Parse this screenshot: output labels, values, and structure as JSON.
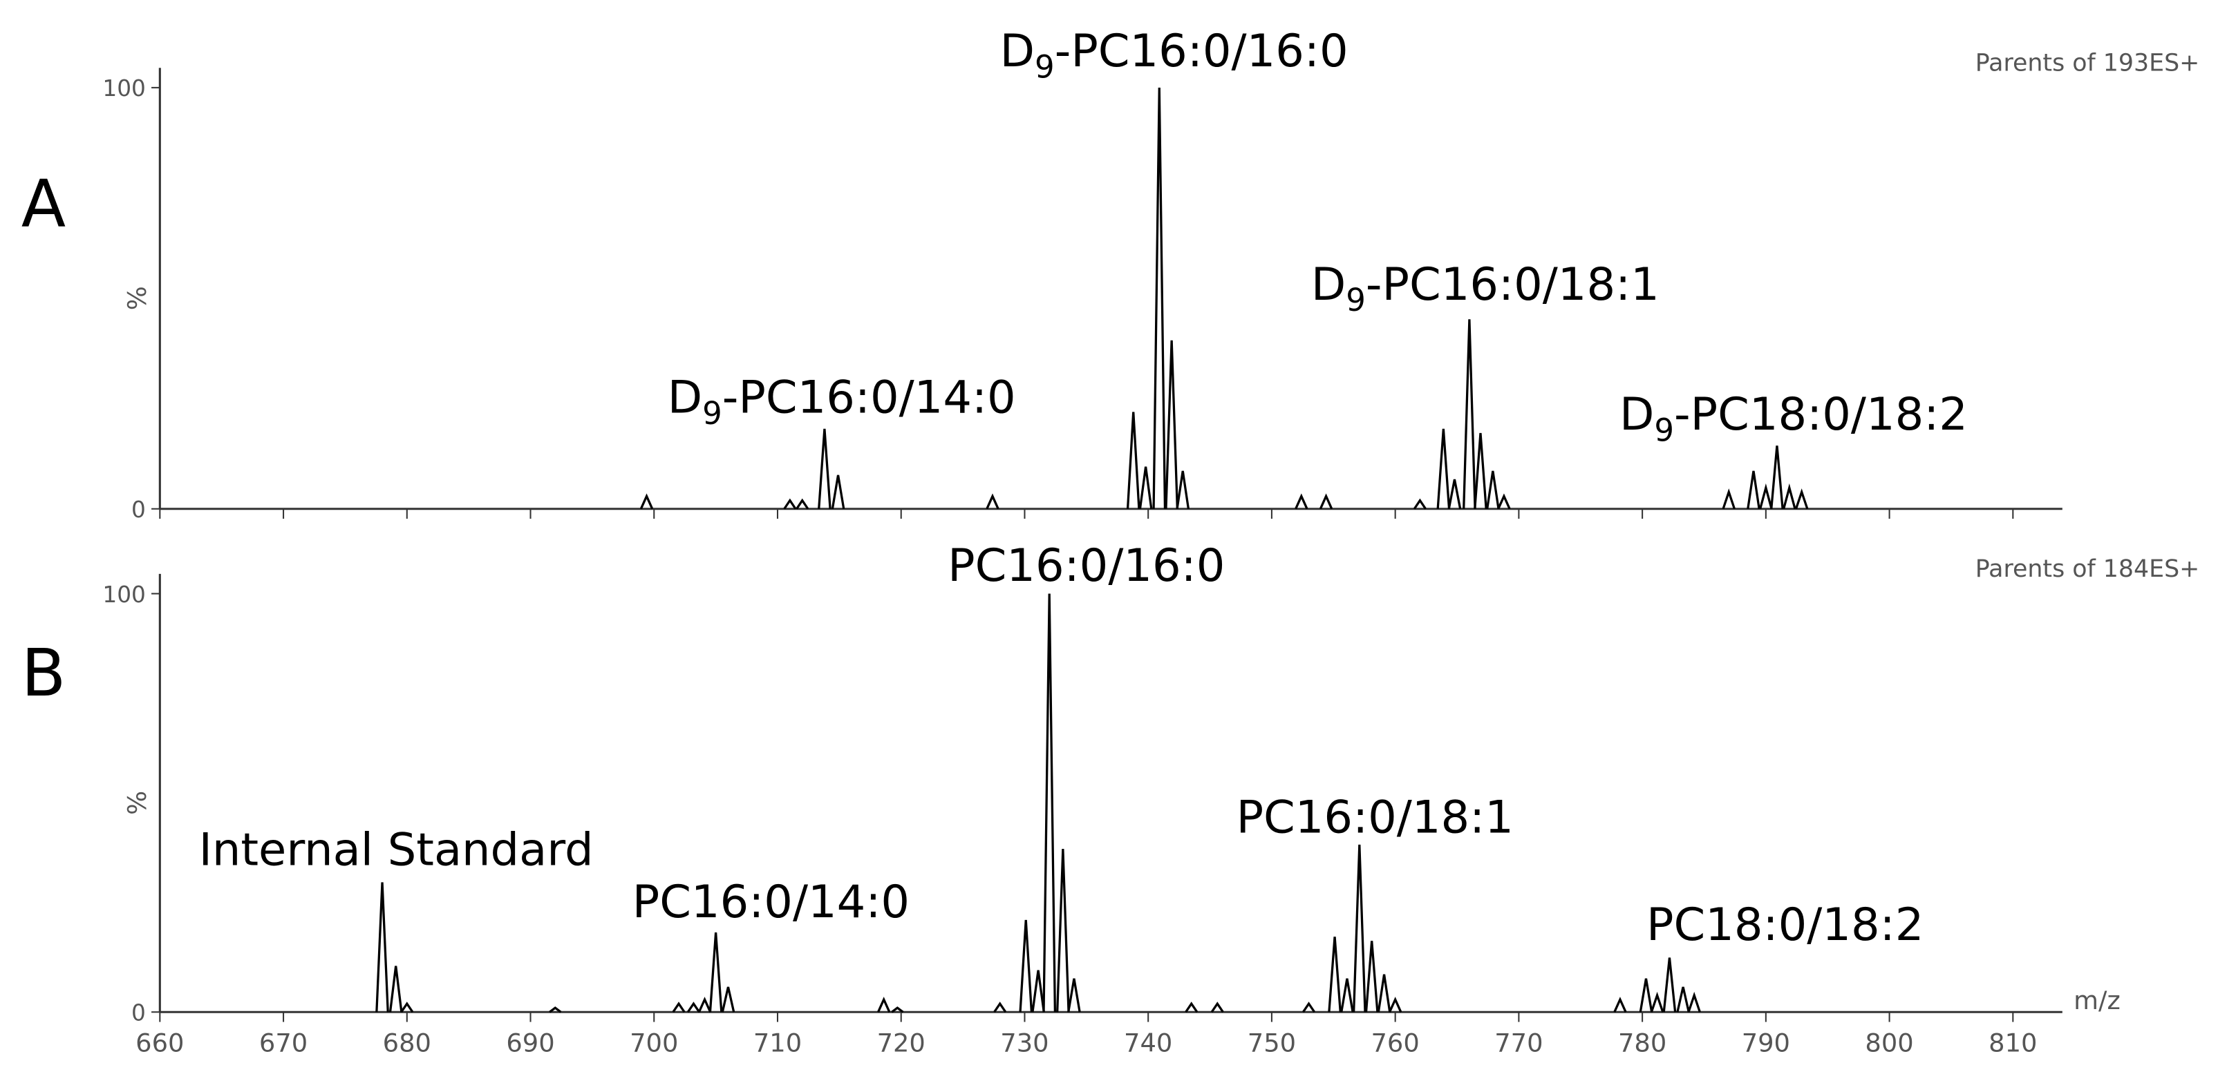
{
  "chart_data": [
    {
      "type": "spectrum",
      "panel_label": "A",
      "title": "Parents of 193ES+",
      "ylabel": "%",
      "x": [
        699.4,
        711.0,
        712.0,
        713.8,
        714.9,
        727.4,
        738.8,
        739.8,
        740.9,
        741.9,
        742.8,
        752.4,
        754.4,
        762.0,
        763.9,
        764.8,
        766.0,
        766.9,
        767.9,
        768.8,
        787.0,
        789.0,
        790.0,
        790.9,
        791.9,
        792.9
      ],
      "values": [
        3,
        2,
        2,
        19,
        8,
        3,
        23,
        10,
        100,
        40,
        9,
        3,
        3,
        2,
        19,
        7,
        45,
        18,
        9,
        3,
        4,
        9,
        5,
        15,
        5,
        4
      ],
      "color": "#000000",
      "xlim": [
        660,
        814
      ],
      "ylim": [
        0,
        100
      ],
      "yticks": [
        0,
        100
      ],
      "xticks": [
        660,
        670,
        680,
        690,
        700,
        710,
        720,
        730,
        740,
        750,
        760,
        770,
        780,
        790,
        800,
        810
      ],
      "x_tick_labels": false,
      "annotations": [
        "D9-PC16:0/14:0",
        "D9-PC16:0/16:0",
        "D9-PC16:0/18:1",
        "D9-PC18:0/18:2"
      ]
    },
    {
      "type": "spectrum",
      "panel_label": "B",
      "title": "Parents of 184ES+",
      "ylabel": "%",
      "xlabel": "m/z",
      "x": [
        678.0,
        679.1,
        680.0,
        692.0,
        702.0,
        703.2,
        704.1,
        705.0,
        706.0,
        718.6,
        719.7,
        728.0,
        730.1,
        731.1,
        732.0,
        733.1,
        734.0,
        743.5,
        745.6,
        753.0,
        755.1,
        756.1,
        757.1,
        758.1,
        759.1,
        760.0,
        778.2,
        780.3,
        781.2,
        782.2,
        783.3,
        784.2
      ],
      "values": [
        31,
        11,
        2,
        1,
        2,
        2,
        3,
        19,
        6,
        3,
        1,
        2,
        22,
        10,
        100,
        39,
        8,
        2,
        2,
        2,
        18,
        8,
        40,
        17,
        9,
        3,
        3,
        8,
        4,
        13,
        6,
        4
      ],
      "color": "#000000",
      "xlim": [
        660,
        814
      ],
      "ylim": [
        0,
        100
      ],
      "yticks": [
        0,
        100
      ],
      "xticks": [
        660,
        670,
        680,
        690,
        700,
        710,
        720,
        730,
        740,
        750,
        760,
        770,
        780,
        790,
        800,
        810
      ],
      "x_tick_labels": true,
      "annotations": [
        "Internal Standard",
        "PC16:0/14:0",
        "PC16:0/16:0",
        "PC16:0/18:1",
        "PC18:0/18:2"
      ]
    }
  ]
}
